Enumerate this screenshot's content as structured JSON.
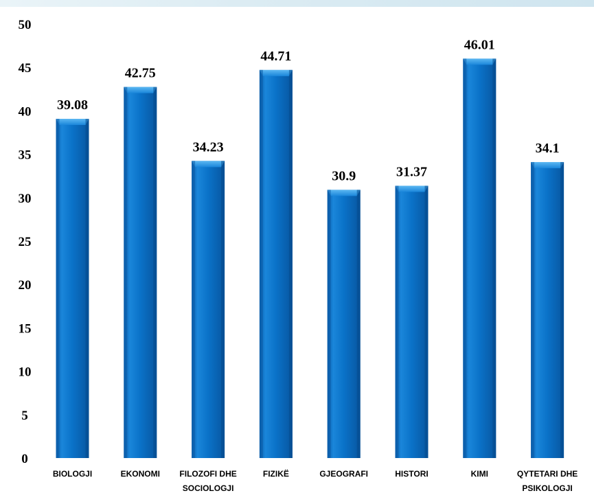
{
  "chart_data": {
    "type": "bar",
    "categories": [
      [
        "BIOLOGJI"
      ],
      [
        "EKONOMI"
      ],
      [
        "FILOZOFI DHE",
        "SOCIOLOGJI"
      ],
      [
        "FIZIKË"
      ],
      [
        "GJEOGRAFI"
      ],
      [
        "HISTORI"
      ],
      [
        "KIMI"
      ],
      [
        "QYTETARI DHE",
        "PSIKOLOGJI"
      ]
    ],
    "values": [
      39.08,
      42.75,
      34.23,
      44.71,
      30.9,
      31.37,
      46.01,
      34.1
    ],
    "value_labels": [
      "39.08",
      "42.75",
      "34.23",
      "44.71",
      "30.9",
      "31.37",
      "46.01",
      "34.1"
    ],
    "ylim": [
      0,
      50
    ],
    "yticks": [
      "0",
      "5",
      "10",
      "15",
      "20",
      "25",
      "30",
      "35",
      "40",
      "45",
      "50"
    ],
    "grid": false,
    "bar_color": "#0a72c8",
    "title": "",
    "xlabel": "",
    "ylabel": ""
  }
}
